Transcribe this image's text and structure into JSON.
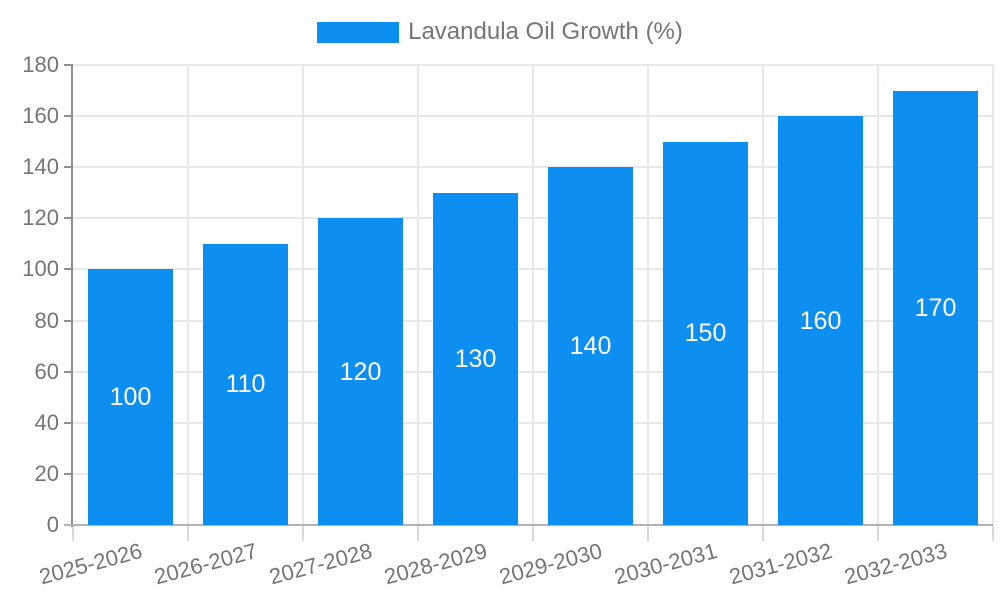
{
  "legend": {
    "label": "Lavandula Oil Growth (%)"
  },
  "chart_data": {
    "type": "bar",
    "title": "Lavandula Oil Growth (%)",
    "categories": [
      "2025-2026",
      "2026-2027",
      "2027-2028",
      "2028-2029",
      "2029-2030",
      "2030-2031",
      "2031-2032",
      "2032-2033"
    ],
    "series": [
      {
        "name": "Lavandula Oil Growth (%)",
        "values": [
          100,
          110,
          120,
          130,
          140,
          150,
          160,
          170
        ]
      }
    ],
    "values": [
      100,
      110,
      120,
      130,
      140,
      150,
      160,
      170
    ],
    "bar_labels": [
      "100",
      "110",
      "120",
      "130",
      "140",
      "150",
      "160",
      "170"
    ],
    "xlabel": "",
    "ylabel": "",
    "ylim": [
      0,
      180
    ],
    "ytick_step": 20,
    "ytick_labels": [
      "0",
      "20",
      "40",
      "60",
      "80",
      "100",
      "120",
      "140",
      "160",
      "180"
    ],
    "grid": true,
    "legend_position": "top-center",
    "x_tick_rotation_deg": -15,
    "colors": {
      "bar": "#0d8ff2",
      "bar_value_text": "#ffffff",
      "axis_text": "#757575",
      "y_axis_line": "#8f8f8f",
      "x_axis_line": "#b3b3b3",
      "y_tick": "#8f8f8f",
      "x_tick": "#d9d9d9",
      "gridline": "#e8e8e8",
      "background": "#ffffff"
    }
  }
}
